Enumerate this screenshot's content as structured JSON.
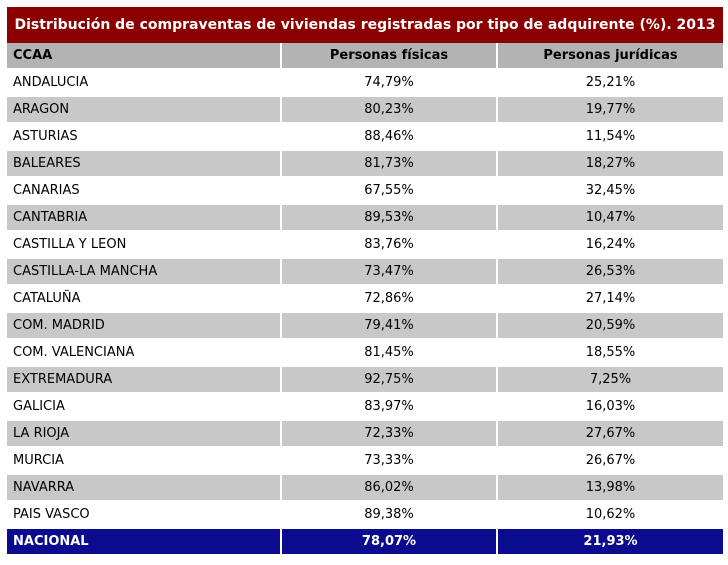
{
  "title": "Distribución de compraventas de viviendas registradas por tipo de adquirente (%). 2013",
  "colors": {
    "title_bg": "#8b0000",
    "header_bg": "#b3b3b3",
    "stripe": "#c8c8c8",
    "total_bg": "#0b0b8f"
  },
  "headers": [
    "CCAA",
    "Personas físicas",
    "Personas jurídicas"
  ],
  "rows": [
    [
      "ANDALUCIA",
      "74,79%",
      "25,21%"
    ],
    [
      "ARAGON",
      "80,23%",
      "19,77%"
    ],
    [
      "ASTURIAS",
      "88,46%",
      "11,54%"
    ],
    [
      "BALEARES",
      "81,73%",
      "18,27%"
    ],
    [
      "CANARIAS",
      "67,55%",
      "32,45%"
    ],
    [
      "CANTABRIA",
      "89,53%",
      "10,47%"
    ],
    [
      "CASTILLA Y LEON",
      "83,76%",
      "16,24%"
    ],
    [
      "CASTILLA-LA MANCHA",
      "73,47%",
      "26,53%"
    ],
    [
      "CATALUÑA",
      "72,86%",
      "27,14%"
    ],
    [
      "COM. MADRID",
      "79,41%",
      "20,59%"
    ],
    [
      "COM. VALENCIANA",
      "81,45%",
      "18,55%"
    ],
    [
      "EXTREMADURA",
      "92,75%",
      "7,25%"
    ],
    [
      "GALICIA",
      "83,97%",
      "16,03%"
    ],
    [
      "LA RIOJA",
      "72,33%",
      "27,67%"
    ],
    [
      "MURCIA",
      "73,33%",
      "26,67%"
    ],
    [
      "NAVARRA",
      "86,02%",
      "13,98%"
    ],
    [
      "PAIS VASCO",
      "89,38%",
      "10,62%"
    ]
  ],
  "total": [
    "NACIONAL",
    "78,07%",
    "21,93%"
  ]
}
